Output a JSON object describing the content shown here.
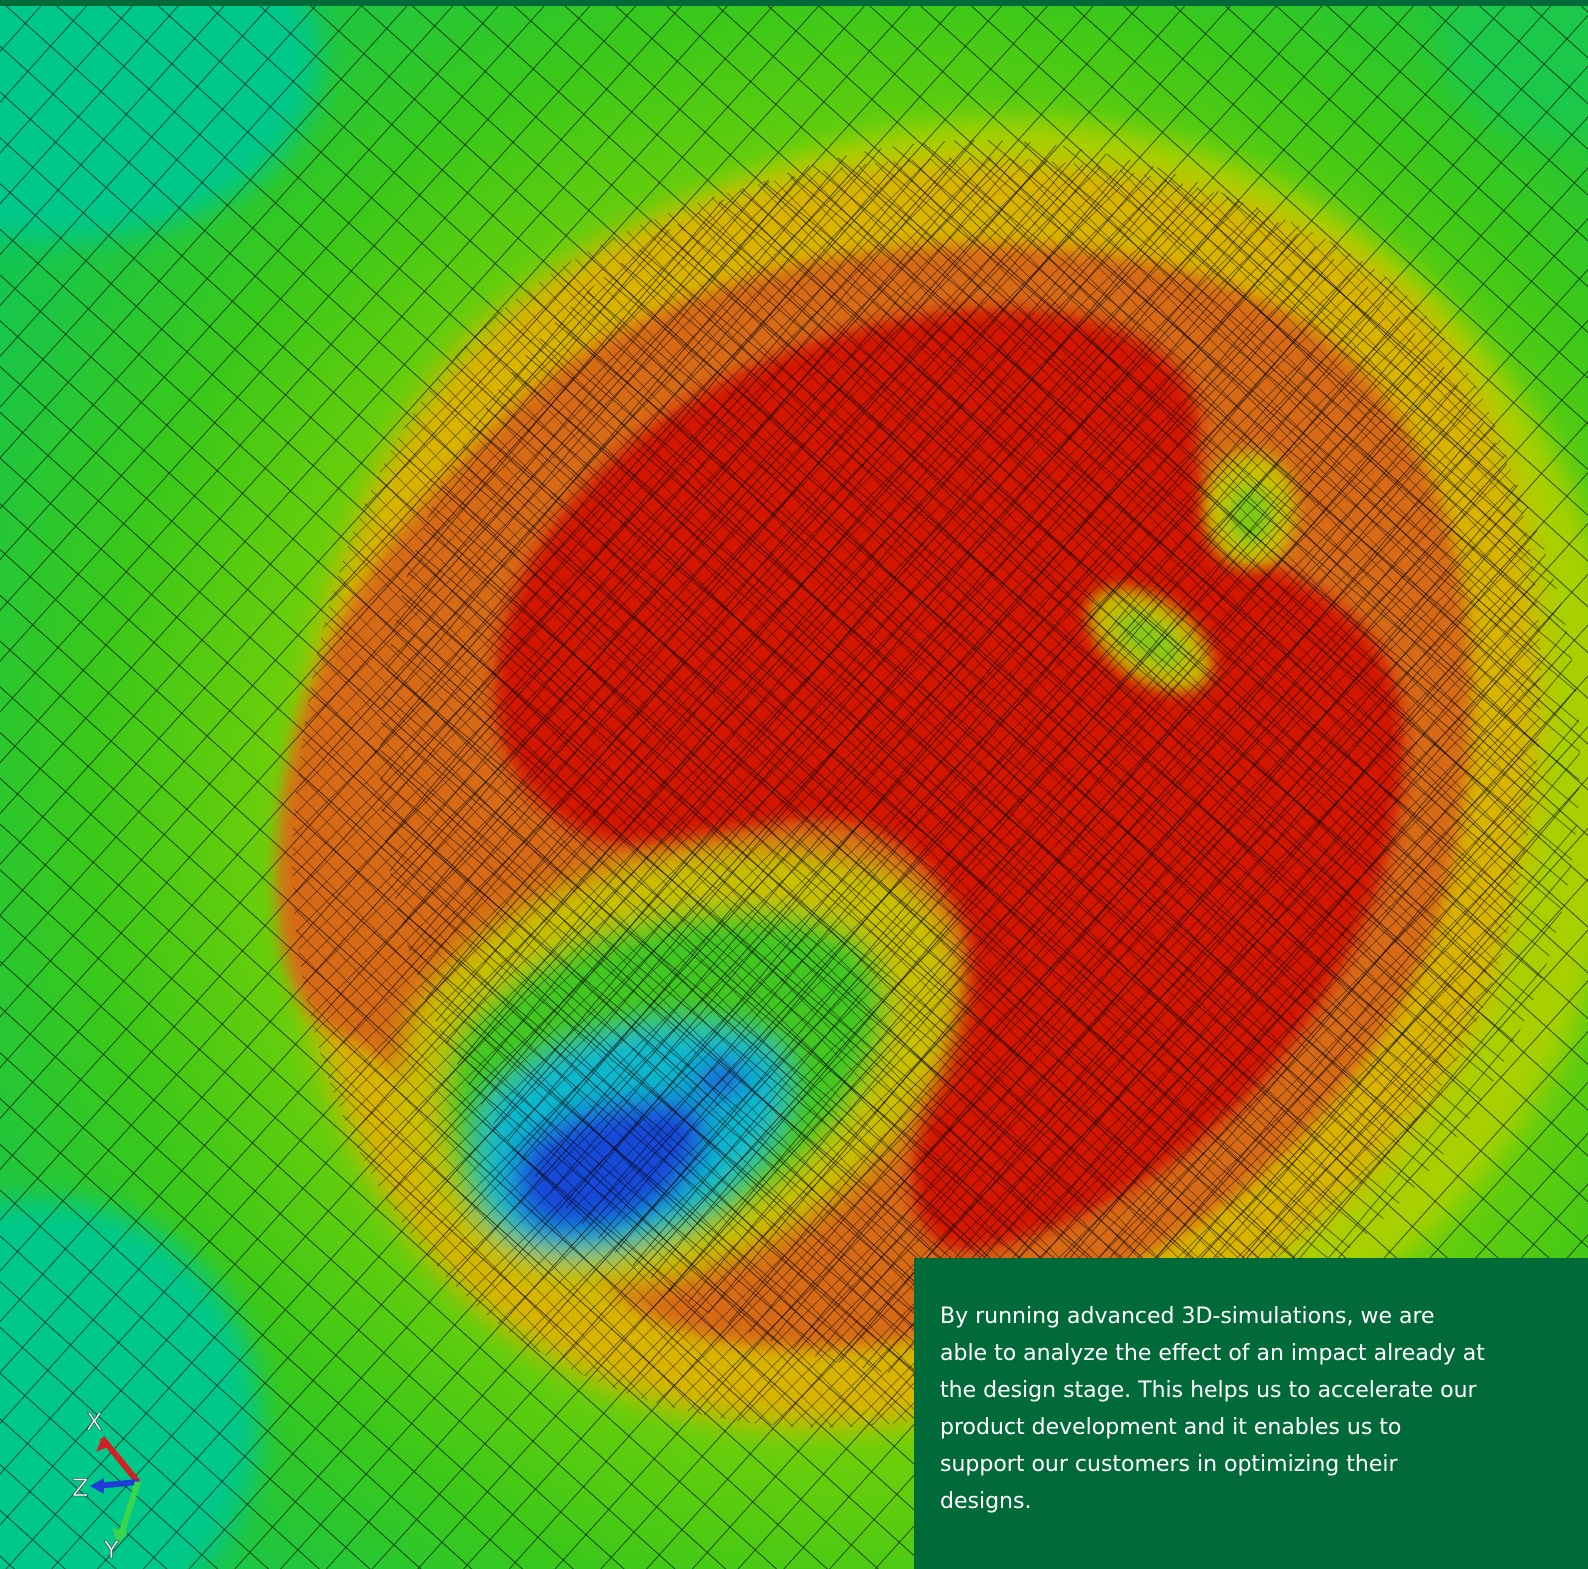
{
  "caption": {
    "text": "By running advanced 3D-simulations, we are able to analyze the effect of an impact already at the design stage. This helps us to accelerate our product development and it enables us to support our customers in optimizing their designs."
  },
  "axes": {
    "x_label": "X",
    "y_label": "Y",
    "z_label": "Z",
    "x_color": "#d42020",
    "y_color": "#3ad64a",
    "z_color": "#1e3cd8"
  },
  "colors": {
    "background": "#0a9a4a",
    "panel": "#006a38",
    "contour_teal": "#00c88a",
    "contour_green": "#22c41a",
    "contour_yellowgreen": "#9ed400",
    "contour_yellow": "#d8b800",
    "contour_orange": "#d86a10",
    "contour_red": "#d21800",
    "contour_cyan": "#10b8d0",
    "contour_blue": "#1848d8"
  }
}
